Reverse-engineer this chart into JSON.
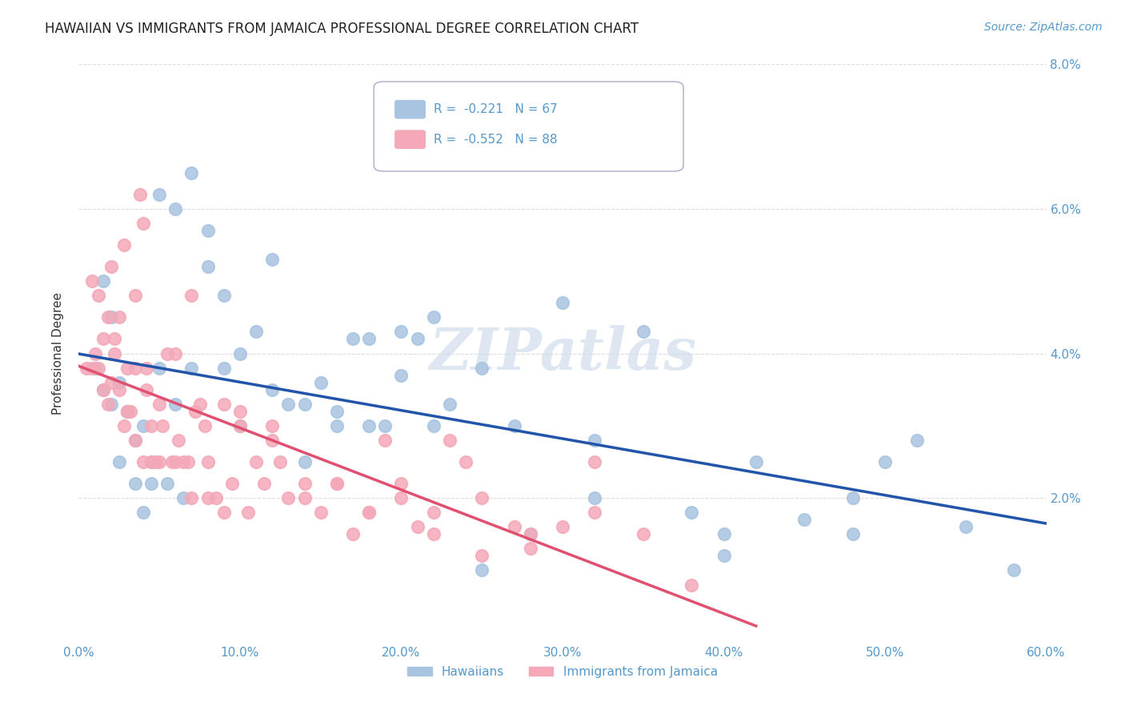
{
  "title": "HAWAIIAN VS IMMIGRANTS FROM JAMAICA PROFESSIONAL DEGREE CORRELATION CHART",
  "source": "Source: ZipAtlas.com",
  "ylabel": "Professional Degree",
  "xlim": [
    0.0,
    0.6
  ],
  "ylim": [
    0.0,
    0.08
  ],
  "yticks": [
    0.0,
    0.02,
    0.04,
    0.06,
    0.08
  ],
  "xticks": [
    0.0,
    0.1,
    0.2,
    0.3,
    0.4,
    0.5,
    0.6
  ],
  "ytick_labels": [
    "",
    "2.0%",
    "4.0%",
    "6.0%",
    "8.0%"
  ],
  "xtick_labels": [
    "0.0%",
    "10.0%",
    "20.0%",
    "30.0%",
    "40.0%",
    "50.0%",
    "60.0%"
  ],
  "hawaiians_color": "#a8c4e0",
  "jamaica_color": "#f4a8b8",
  "line_hawaiians_color": "#2255aa",
  "line_jamaica_color": "#e05070",
  "hawaiians_R": -0.221,
  "hawaiians_N": 67,
  "jamaica_R": -0.552,
  "jamaica_N": 88,
  "watermark": "ZIPatlas",
  "watermark_color": "#c8d8e8",
  "background_color": "#ffffff",
  "grid_color": "#dddddd",
  "tick_label_color": "#5599cc",
  "hawaiians_x": [
    0.01,
    0.015,
    0.02,
    0.025,
    0.03,
    0.035,
    0.04,
    0.045,
    0.05,
    0.055,
    0.06,
    0.065,
    0.07,
    0.08,
    0.09,
    0.1,
    0.11,
    0.12,
    0.13,
    0.14,
    0.15,
    0.16,
    0.17,
    0.18,
    0.19,
    0.2,
    0.21,
    0.22,
    0.23,
    0.25,
    0.27,
    0.3,
    0.32,
    0.35,
    0.38,
    0.4,
    0.42,
    0.45,
    0.48,
    0.5,
    0.52,
    0.55,
    0.58,
    0.015,
    0.02,
    0.025,
    0.03,
    0.035,
    0.04,
    0.045,
    0.05,
    0.06,
    0.07,
    0.08,
    0.09,
    0.1,
    0.12,
    0.14,
    0.16,
    0.18,
    0.2,
    0.22,
    0.25,
    0.28,
    0.32,
    0.4,
    0.48
  ],
  "hawaiians_y": [
    0.038,
    0.035,
    0.033,
    0.036,
    0.032,
    0.028,
    0.03,
    0.025,
    0.038,
    0.022,
    0.033,
    0.02,
    0.038,
    0.052,
    0.038,
    0.04,
    0.043,
    0.053,
    0.033,
    0.033,
    0.036,
    0.032,
    0.042,
    0.042,
    0.03,
    0.043,
    0.042,
    0.03,
    0.033,
    0.038,
    0.03,
    0.047,
    0.028,
    0.043,
    0.018,
    0.012,
    0.025,
    0.017,
    0.02,
    0.025,
    0.028,
    0.016,
    0.01,
    0.05,
    0.045,
    0.025,
    0.032,
    0.022,
    0.018,
    0.022,
    0.062,
    0.06,
    0.065,
    0.057,
    0.048,
    0.03,
    0.035,
    0.025,
    0.03,
    0.03,
    0.037,
    0.045,
    0.01,
    0.015,
    0.02,
    0.015,
    0.015
  ],
  "jamaica_x": [
    0.005,
    0.008,
    0.01,
    0.012,
    0.015,
    0.018,
    0.02,
    0.022,
    0.025,
    0.028,
    0.03,
    0.032,
    0.035,
    0.038,
    0.04,
    0.042,
    0.045,
    0.048,
    0.05,
    0.052,
    0.055,
    0.058,
    0.06,
    0.062,
    0.065,
    0.068,
    0.07,
    0.072,
    0.075,
    0.078,
    0.08,
    0.085,
    0.09,
    0.095,
    0.1,
    0.105,
    0.11,
    0.115,
    0.12,
    0.125,
    0.13,
    0.14,
    0.15,
    0.16,
    0.17,
    0.18,
    0.19,
    0.2,
    0.21,
    0.22,
    0.23,
    0.24,
    0.25,
    0.27,
    0.28,
    0.3,
    0.32,
    0.35,
    0.38,
    0.015,
    0.02,
    0.025,
    0.03,
    0.035,
    0.04,
    0.045,
    0.05,
    0.06,
    0.07,
    0.08,
    0.09,
    0.1,
    0.12,
    0.14,
    0.16,
    0.18,
    0.2,
    0.22,
    0.25,
    0.28,
    0.32,
    0.008,
    0.012,
    0.018,
    0.022,
    0.028,
    0.035,
    0.042
  ],
  "jamaica_y": [
    0.038,
    0.038,
    0.04,
    0.038,
    0.035,
    0.033,
    0.052,
    0.04,
    0.045,
    0.03,
    0.038,
    0.032,
    0.038,
    0.062,
    0.058,
    0.035,
    0.03,
    0.025,
    0.033,
    0.03,
    0.04,
    0.025,
    0.04,
    0.028,
    0.025,
    0.025,
    0.048,
    0.032,
    0.033,
    0.03,
    0.025,
    0.02,
    0.033,
    0.022,
    0.03,
    0.018,
    0.025,
    0.022,
    0.028,
    0.025,
    0.02,
    0.02,
    0.018,
    0.022,
    0.015,
    0.018,
    0.028,
    0.022,
    0.016,
    0.015,
    0.028,
    0.025,
    0.012,
    0.016,
    0.013,
    0.016,
    0.025,
    0.015,
    0.008,
    0.042,
    0.036,
    0.035,
    0.032,
    0.028,
    0.025,
    0.025,
    0.025,
    0.025,
    0.02,
    0.02,
    0.018,
    0.032,
    0.03,
    0.022,
    0.022,
    0.018,
    0.02,
    0.018,
    0.02,
    0.015,
    0.018,
    0.05,
    0.048,
    0.045,
    0.042,
    0.055,
    0.048,
    0.038
  ]
}
